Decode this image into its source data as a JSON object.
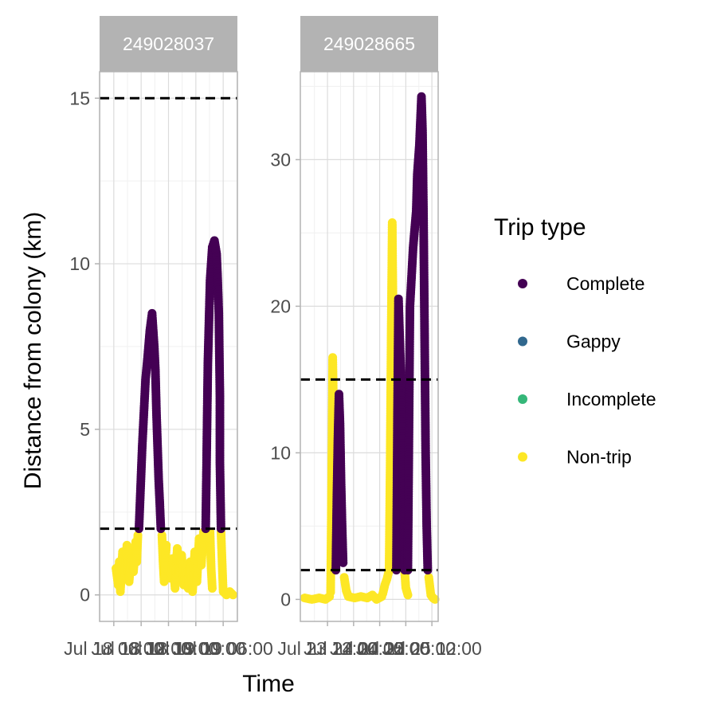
{
  "chart_data": {
    "type": "scatter",
    "xlabel": "Time",
    "ylabel": "Distance from colony (km)",
    "threshold_lines": [
      2,
      15
    ],
    "legend": {
      "title": "Trip type",
      "placement": "right",
      "entries": [
        {
          "label": "Complete",
          "color": "#440154"
        },
        {
          "label": "Gappy",
          "color": "#31688e"
        },
        {
          "label": "Incomplete",
          "color": "#35b779"
        },
        {
          "label": "Non-trip",
          "color": "#fde725"
        }
      ]
    },
    "panels": [
      {
        "strip": "249028037",
        "ylim": [
          -0.8,
          15.8
        ],
        "yticks": [
          0,
          5,
          10,
          15
        ],
        "xlim": [
          -0.13,
          1.13
        ],
        "xticks": [
          0,
          0.25,
          0.5,
          0.75,
          1
        ],
        "xtick_labels": [
          "Jul 18 06:00",
          "Jul 18 12:00",
          "Jul 18 18:00",
          "Jul 19 00:00",
          "Jul 19 06:00"
        ],
        "series": [
          {
            "name": "Non-trip",
            "segments": [
              [
                [
                  0.02,
                  0.8
                ],
                [
                  0.04,
                  0.3
                ],
                [
                  0.05,
                  1.0
                ],
                [
                  0.06,
                  0.1
                ],
                [
                  0.08,
                  1.3
                ],
                [
                  0.1,
                  0.6
                ],
                [
                  0.12,
                  1.5
                ],
                [
                  0.14,
                  0.4
                ],
                [
                  0.16,
                  1.2
                ],
                [
                  0.18,
                  0.7
                ],
                [
                  0.2,
                  1.6
                ],
                [
                  0.21,
                  1.0
                ],
                [
                  0.22,
                  1.8
                ]
              ],
              [
                [
                  0.44,
                  1.8
                ],
                [
                  0.45,
                  1.0
                ],
                [
                  0.46,
                  0.4
                ],
                [
                  0.47,
                  0.8
                ],
                [
                  0.48,
                  1.5
                ]
              ],
              [
                [
                  0.52,
                  0.5
                ],
                [
                  0.54,
                  1.1
                ],
                [
                  0.56,
                  0.2
                ],
                [
                  0.58,
                  1.4
                ],
                [
                  0.6,
                  0.6
                ],
                [
                  0.62,
                  1.2
                ],
                [
                  0.64,
                  0.3
                ],
                [
                  0.66,
                  0.9
                ],
                [
                  0.68,
                  0.2
                ],
                [
                  0.7,
                  1.0
                ],
                [
                  0.72,
                  0.1
                ],
                [
                  0.74,
                  1.3
                ],
                [
                  0.76,
                  0.4
                ],
                [
                  0.78,
                  1.7
                ],
                [
                  0.8,
                  0.9
                ],
                [
                  0.82,
                  1.9
                ]
              ],
              [
                [
                  0.88,
                  1.9
                ],
                [
                  0.89,
                  0.8
                ],
                [
                  0.9,
                  0.2
                ]
              ],
              [
                [
                  0.98,
                  1.9
                ],
                [
                  0.99,
                  1.0
                ],
                [
                  1.0,
                  0.1
                ],
                [
                  1.03,
                  0.0
                ],
                [
                  1.06,
                  0.1
                ],
                [
                  1.09,
                  0.0
                ]
              ]
            ]
          },
          {
            "name": "Complete",
            "segments": [
              [
                [
                  0.23,
                  2.0
                ],
                [
                  0.26,
                  4.5
                ],
                [
                  0.29,
                  6.5
                ],
                [
                  0.31,
                  7.2
                ],
                [
                  0.33,
                  8.0
                ],
                [
                  0.35,
                  8.5
                ],
                [
                  0.37,
                  7.5
                ],
                [
                  0.38,
                  6.8
                ],
                [
                  0.39,
                  5.5
                ],
                [
                  0.4,
                  4.5
                ],
                [
                  0.41,
                  3.5
                ],
                [
                  0.42,
                  2.8
                ],
                [
                  0.43,
                  2.0
                ]
              ],
              [
                [
                  0.84,
                  2.0
                ],
                [
                  0.86,
                  7.0
                ],
                [
                  0.88,
                  9.5
                ],
                [
                  0.9,
                  10.5
                ],
                [
                  0.92,
                  10.7
                ],
                [
                  0.94,
                  10.3
                ],
                [
                  0.95,
                  9.5
                ],
                [
                  0.96,
                  8.5
                ],
                [
                  0.97,
                  6.0
                ],
                [
                  0.97,
                  4.0
                ],
                [
                  0.98,
                  2.0
                ]
              ]
            ]
          }
        ]
      },
      {
        "strip": "249028665",
        "ylim": [
          -1.5,
          36.0
        ],
        "yticks": [
          0,
          10,
          20,
          30
        ],
        "xlim": [
          -0.26,
          1.06
        ],
        "xticks": [
          0,
          0.25,
          0.5,
          0.75,
          1
        ],
        "xtick_labels": [
          "Jul 23 12:00",
          "Jul 24 00:00",
          "Jul 24 12:00",
          "Jul 25 00:00",
          "Jul 25 12:00"
        ],
        "series": [
          {
            "name": "Non-trip",
            "segments": [
              [
                [
                  -0.22,
                  0.1
                ],
                [
                  -0.15,
                  0.0
                ],
                [
                  -0.08,
                  0.1
                ],
                [
                  -0.02,
                  0.0
                ],
                [
                  0.02,
                  0.2
                ]
              ],
              [
                [
                  0.03,
                  0.5
                ],
                [
                  0.04,
                  8.0
                ],
                [
                  0.05,
                  16.5
                ],
                [
                  0.06,
                  12.0
                ],
                [
                  0.07,
                  6.0
                ],
                [
                  0.08,
                  2.0
                ]
              ],
              [
                [
                  0.16,
                  1.5
                ],
                [
                  0.18,
                  0.6
                ],
                [
                  0.2,
                  0.2
                ],
                [
                  0.26,
                  0.1
                ],
                [
                  0.32,
                  0.2
                ],
                [
                  0.38,
                  0.1
                ],
                [
                  0.43,
                  0.3
                ],
                [
                  0.47,
                  0.0
                ],
                [
                  0.52,
                  0.2
                ]
              ],
              [
                [
                  0.53,
                  0.4
                ],
                [
                  0.55,
                  1.0
                ],
                [
                  0.57,
                  1.4
                ],
                [
                  0.59,
                  2.0
                ],
                [
                  0.6,
                  9.0
                ],
                [
                  0.61,
                  18.0
                ],
                [
                  0.62,
                  25.7
                ],
                [
                  0.63,
                  18.0
                ],
                [
                  0.64,
                  9.0
                ],
                [
                  0.65,
                  2.5
                ]
              ],
              [
                [
                  0.74,
                  1.8
                ],
                [
                  0.75,
                  0.8
                ],
                [
                  0.77,
                  0.3
                ]
              ],
              [
                [
                  0.97,
                  1.5
                ],
                [
                  0.99,
                  0.3
                ],
                [
                  1.01,
                  0.1
                ],
                [
                  1.03,
                  0.0
                ]
              ]
            ]
          },
          {
            "name": "Complete",
            "segments": [
              [
                [
                  0.08,
                  2.0
                ],
                [
                  0.09,
                  7.0
                ],
                [
                  0.1,
                  11.0
                ],
                [
                  0.11,
                  14.0
                ],
                [
                  0.12,
                  12.0
                ],
                [
                  0.13,
                  8.0
                ],
                [
                  0.14,
                  5.0
                ],
                [
                  0.15,
                  2.5
                ]
              ],
              [
                [
                  0.66,
                  2.0
                ],
                [
                  0.67,
                  12.0
                ],
                [
                  0.68,
                  20.5
                ],
                [
                  0.7,
                  16.0
                ],
                [
                  0.72,
                  10.0
                ],
                [
                  0.73,
                  5.0
                ],
                [
                  0.74,
                  2.0
                ]
              ],
              [
                [
                  0.77,
                  2.0
                ],
                [
                  0.79,
                  20.0
                ],
                [
                  0.82,
                  24.0
                ],
                [
                  0.85,
                  26.5
                ],
                [
                  0.86,
                  29.0
                ],
                [
                  0.88,
                  31.0
                ],
                [
                  0.9,
                  34.3
                ],
                [
                  0.91,
                  32.0
                ],
                [
                  0.92,
                  26.0
                ],
                [
                  0.93,
                  18.0
                ],
                [
                  0.94,
                  10.0
                ],
                [
                  0.95,
                  5.0
                ],
                [
                  0.96,
                  2.0
                ]
              ]
            ]
          }
        ]
      }
    ]
  }
}
